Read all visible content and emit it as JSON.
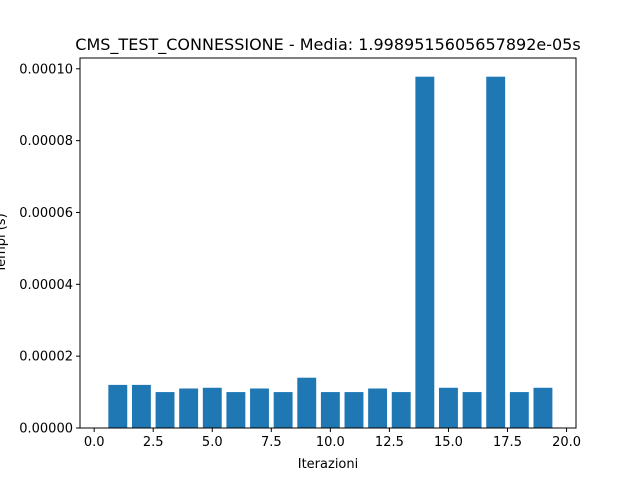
{
  "chart_data": {
    "type": "bar",
    "title": "CMS_TEST_CONNESSIONE - Media: 1.9989515605657892e-05s",
    "xlabel": "Iterazioni",
    "ylabel": "Tempi (s)",
    "x": [
      1,
      2,
      3,
      4,
      5,
      6,
      7,
      8,
      9,
      10,
      11,
      12,
      13,
      14,
      15,
      16,
      17,
      18,
      19
    ],
    "values": [
      1.2e-05,
      1.2e-05,
      1e-05,
      1.1e-05,
      1.12e-05,
      1e-05,
      1.1e-05,
      1e-05,
      1.4e-05,
      1e-05,
      1e-05,
      1.1e-05,
      1e-05,
      9.78e-05,
      1.12e-05,
      1e-05,
      9.78e-05,
      1e-05,
      1.12e-05
    ],
    "xlim": [
      -0.6,
      20.4
    ],
    "ylim": [
      0,
      0.000103
    ],
    "xticks": [
      0.0,
      2.5,
      5.0,
      7.5,
      10.0,
      12.5,
      15.0,
      17.5,
      20.0
    ],
    "xtick_labels": [
      "0.0",
      "2.5",
      "5.0",
      "7.5",
      "10.0",
      "12.5",
      "15.0",
      "17.5",
      "20.0"
    ],
    "yticks": [
      0,
      2e-05,
      4e-05,
      6e-05,
      8e-05,
      0.0001
    ],
    "ytick_labels": [
      "0.00000",
      "0.00002",
      "0.00004",
      "0.00006",
      "0.00008",
      "0.00010"
    ],
    "bar_color": "#1f77b4",
    "grid": false,
    "legend": "none"
  }
}
